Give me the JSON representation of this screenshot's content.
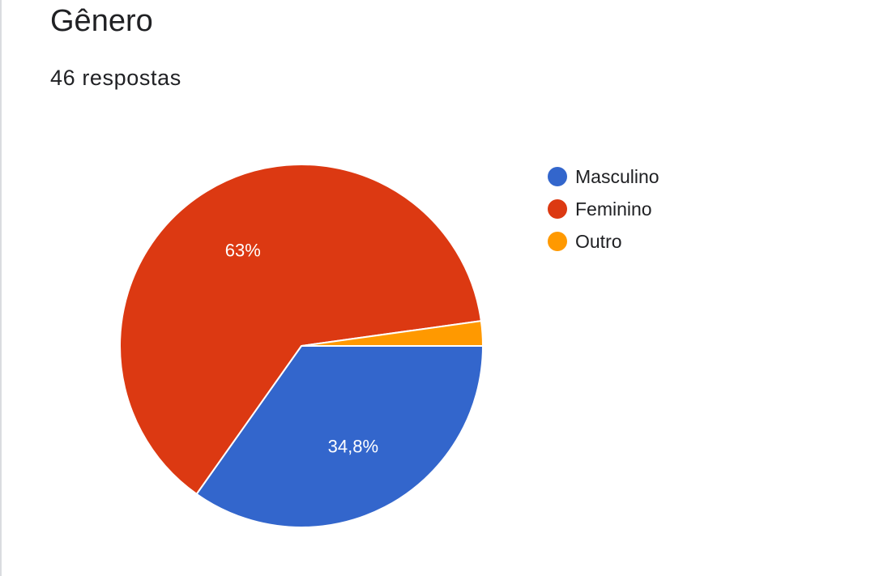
{
  "header": {
    "title": "Gênero",
    "subtitle": "46 respostas"
  },
  "colors": {
    "masculino": "#3366cc",
    "feminino": "#dc3912",
    "outro": "#ff9900"
  },
  "chart_data": {
    "type": "pie",
    "title": "Gênero",
    "subtitle": "46 respostas",
    "legend_position": "right",
    "slices": [
      {
        "name": "Masculino",
        "value": 34.8,
        "color": "#3366cc",
        "label": "34,8%"
      },
      {
        "name": "Feminino",
        "value": 63.0,
        "color": "#dc3912",
        "label": "63%"
      },
      {
        "name": "Outro",
        "value": 2.2,
        "color": "#ff9900",
        "label": ""
      }
    ]
  }
}
